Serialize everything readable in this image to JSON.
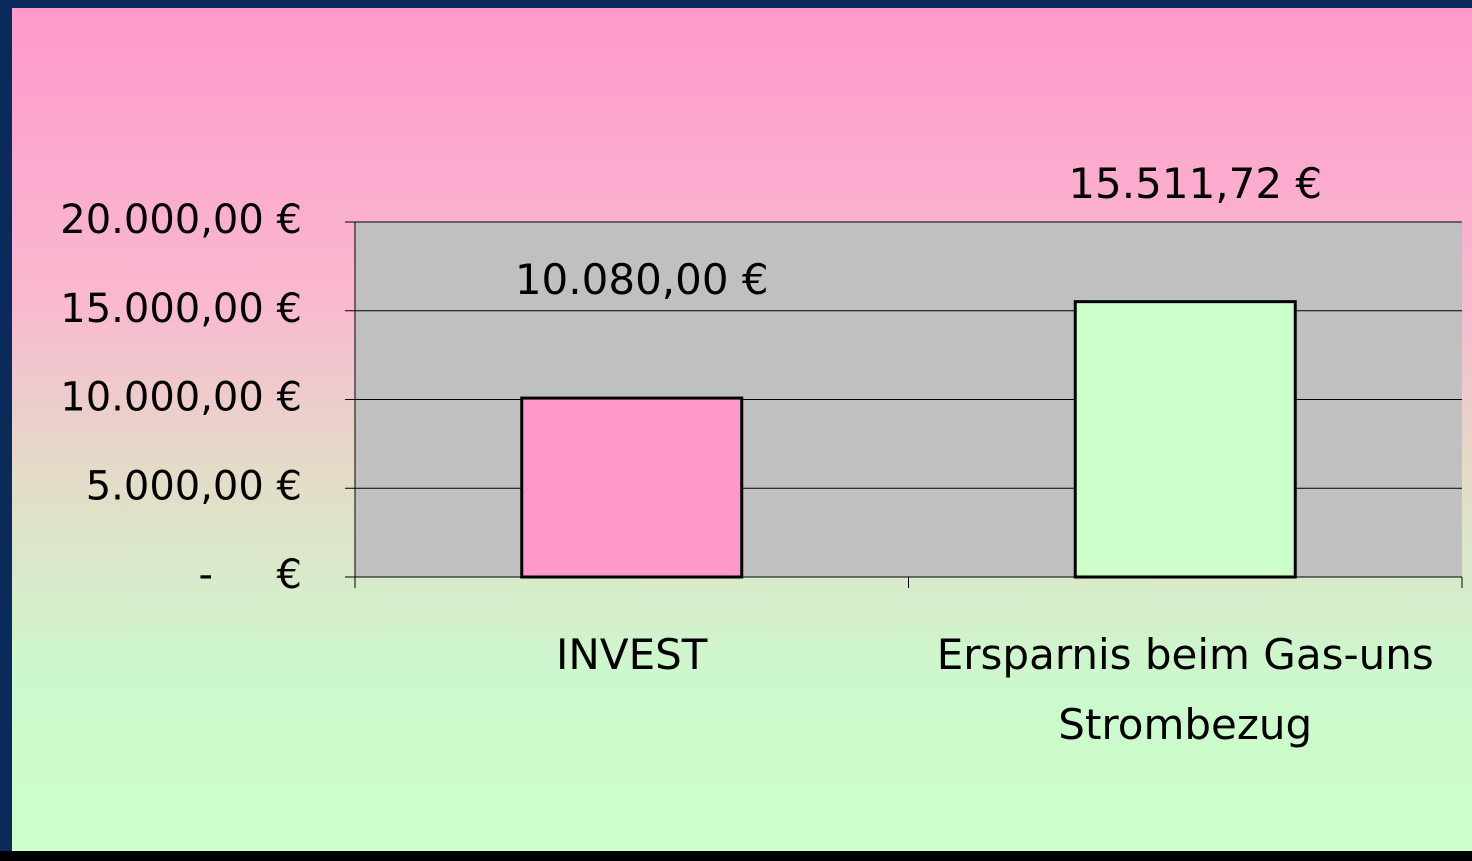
{
  "chart_data": {
    "type": "bar",
    "categories": [
      "INVEST",
      "Ersparnis beim Gas-uns Strombezug"
    ],
    "values": [
      10080,
      15511.72
    ],
    "value_labels": [
      "10.080,00 €",
      "15.511,72 €"
    ],
    "colors": [
      "#ff99cc",
      "#ccffcc"
    ],
    "ylim": [
      0,
      20000
    ],
    "yticks": [
      {
        "value": 0,
        "label": "-     €"
      },
      {
        "value": 5000,
        "label": "5.000,00 €"
      },
      {
        "value": 10000,
        "label": "10.000,00 €"
      },
      {
        "value": 15000,
        "label": "15.000,00 €"
      },
      {
        "value": 20000,
        "label": "20.000,00 €"
      }
    ],
    "grid": true
  }
}
